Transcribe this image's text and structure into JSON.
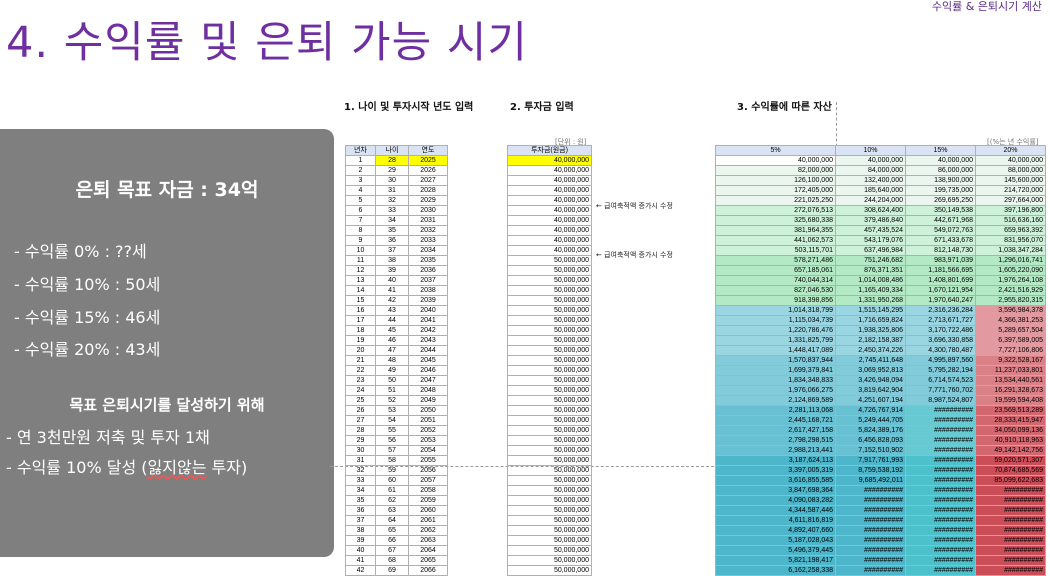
{
  "top_note": "수익률 & 은퇴시기 계산",
  "title": "4. 수익률 및 은퇴 가능 시기",
  "panel": {
    "goal": "은퇴 목표 자금 : 34억",
    "rates": [
      "- 수익률 0% : ??세",
      "- 수익률 10% : 50세",
      "- 수익률 15% : 46세",
      "- 수익률 20% : 43세"
    ],
    "heading": "목표 은퇴시기를 달성하기 위해",
    "actions": [
      "- 연 3천만원 저축 및 투자 1채"
    ],
    "action2_prefix": "- 수익률 10% 달성 (",
    "action2_underlined": "잃지않는",
    "action2_suffix": " 투자)"
  },
  "section_titles": {
    "s1": "1. 나이 및 투자시작 년도 입력",
    "s2": "2. 투자금 입력",
    "s3": "3. 수익률에 따른 자산"
  },
  "unit_labels": {
    "table_b": "[단위 : 원]",
    "table_c": "[(%는 년 수익률]"
  },
  "table_a_headers": [
    "년차",
    "나이",
    "연도"
  ],
  "table_b_header": "투자금(원금)",
  "table_c_headers": [
    "5%",
    "10%",
    "15%",
    "20%"
  ],
  "notes": {
    "n1": "← 급여축적액 증가시 수정",
    "n2": "← 급여축적액 증가시 수정"
  },
  "colors": {
    "title": "#6f2fa0",
    "panel": "#7f7f7f",
    "header_fill": "#dae3f3",
    "highlight": "#ffff00"
  },
  "rows": [
    [
      "1",
      "28",
      "2025",
      "40,000,000",
      "40,000,000",
      "40,000,000",
      "40,000,000",
      "40,000,000"
    ],
    [
      "2",
      "29",
      "2026",
      "40,000,000",
      "82,000,000",
      "84,000,000",
      "86,000,000",
      "88,000,000"
    ],
    [
      "3",
      "30",
      "2027",
      "40,000,000",
      "126,100,000",
      "132,400,000",
      "138,900,000",
      "145,600,000"
    ],
    [
      "4",
      "31",
      "2028",
      "40,000,000",
      "172,405,000",
      "185,640,000",
      "199,735,000",
      "214,720,000"
    ],
    [
      "5",
      "32",
      "2029",
      "40,000,000",
      "221,025,250",
      "244,204,000",
      "269,695,250",
      "297,664,000"
    ],
    [
      "6",
      "33",
      "2030",
      "40,000,000",
      "272,076,513",
      "308,624,400",
      "350,149,538",
      "397,196,800"
    ],
    [
      "7",
      "34",
      "2031",
      "40,000,000",
      "325,680,338",
      "379,486,840",
      "442,671,968",
      "516,636,160"
    ],
    [
      "8",
      "35",
      "2032",
      "40,000,000",
      "381,964,355",
      "457,435,524",
      "549,072,763",
      "659,963,392"
    ],
    [
      "9",
      "36",
      "2033",
      "40,000,000",
      "441,062,573",
      "543,179,076",
      "671,433,678",
      "831,956,070"
    ],
    [
      "10",
      "37",
      "2034",
      "40,000,000",
      "503,115,701",
      "637,496,984",
      "812,148,730",
      "1,038,347,284"
    ],
    [
      "11",
      "38",
      "2035",
      "50,000,000",
      "578,271,486",
      "751,246,682",
      "983,971,039",
      "1,296,016,741"
    ],
    [
      "12",
      "39",
      "2036",
      "50,000,000",
      "657,185,061",
      "876,371,351",
      "1,181,566,695",
      "1,605,220,090"
    ],
    [
      "13",
      "40",
      "2037",
      "50,000,000",
      "740,044,314",
      "1,014,008,486",
      "1,408,801,699",
      "1,976,264,108"
    ],
    [
      "14",
      "41",
      "2038",
      "50,000,000",
      "827,046,530",
      "1,165,409,334",
      "1,670,121,954",
      "2,421,516,929"
    ],
    [
      "15",
      "42",
      "2039",
      "50,000,000",
      "918,398,856",
      "1,331,950,268",
      "1,970,640,247",
      "2,955,820,315"
    ],
    [
      "16",
      "43",
      "2040",
      "50,000,000",
      "1,014,318,799",
      "1,515,145,295",
      "2,316,236,284",
      "3,596,984,378"
    ],
    [
      "17",
      "44",
      "2041",
      "50,000,000",
      "1,115,034,739",
      "1,716,659,824",
      "2,713,671,727",
      "4,366,381,253"
    ],
    [
      "18",
      "45",
      "2042",
      "50,000,000",
      "1,220,786,476",
      "1,938,325,806",
      "3,170,722,486",
      "5,289,657,504"
    ],
    [
      "19",
      "46",
      "2043",
      "50,000,000",
      "1,331,825,799",
      "2,182,158,387",
      "3,696,330,858",
      "6,397,589,005"
    ],
    [
      "20",
      "47",
      "2044",
      "50,000,000",
      "1,448,417,089",
      "2,450,374,226",
      "4,300,780,487",
      "7,727,106,806"
    ],
    [
      "21",
      "48",
      "2045",
      "50,000,000",
      "1,570,837,944",
      "2,745,411,648",
      "4,995,897,560",
      "9,322,528,167"
    ],
    [
      "22",
      "49",
      "2046",
      "50,000,000",
      "1,699,379,841",
      "3,069,952,813",
      "5,795,282,194",
      "11,237,033,801"
    ],
    [
      "23",
      "50",
      "2047",
      "50,000,000",
      "1,834,348,833",
      "3,426,948,094",
      "6,714,574,523",
      "13,534,440,561"
    ],
    [
      "24",
      "51",
      "2048",
      "50,000,000",
      "1,976,066,275",
      "3,819,642,904",
      "7,771,760,702",
      "16,291,328,673"
    ],
    [
      "25",
      "52",
      "2049",
      "50,000,000",
      "2,124,869,589",
      "4,251,607,194",
      "8,987,524,807",
      "19,599,594,408"
    ],
    [
      "26",
      "53",
      "2050",
      "50,000,000",
      "2,281,113,068",
      "4,726,767,914",
      "##########",
      "23,569,513,289"
    ],
    [
      "27",
      "54",
      "2051",
      "50,000,000",
      "2,445,168,721",
      "5,249,444,705",
      "##########",
      "28,333,415,947"
    ],
    [
      "28",
      "55",
      "2052",
      "50,000,000",
      "2,617,427,158",
      "5,824,389,176",
      "##########",
      "34,050,099,136"
    ],
    [
      "29",
      "56",
      "2053",
      "50,000,000",
      "2,798,298,515",
      "6,456,828,093",
      "##########",
      "40,910,118,963"
    ],
    [
      "30",
      "57",
      "2054",
      "50,000,000",
      "2,988,213,441",
      "7,152,510,902",
      "##########",
      "49,142,142,756"
    ],
    [
      "31",
      "58",
      "2055",
      "50,000,000",
      "3,187,624,113",
      "7,917,761,993",
      "##########",
      "59,020,571,307"
    ],
    [
      "32",
      "59",
      "2056",
      "50,000,000",
      "3,397,005,319",
      "8,759,538,192",
      "##########",
      "70,874,685,569"
    ],
    [
      "33",
      "60",
      "2057",
      "50,000,000",
      "3,616,855,585",
      "9,685,492,011",
      "##########",
      "85,099,622,683"
    ],
    [
      "34",
      "61",
      "2058",
      "50,000,000",
      "3,847,698,364",
      "##########",
      "##########",
      "##########"
    ],
    [
      "35",
      "62",
      "2059",
      "50,000,000",
      "4,090,083,282",
      "##########",
      "##########",
      "##########"
    ],
    [
      "36",
      "63",
      "2060",
      "50,000,000",
      "4,344,587,446",
      "##########",
      "##########",
      "##########"
    ],
    [
      "37",
      "64",
      "2061",
      "50,000,000",
      "4,611,816,819",
      "##########",
      "##########",
      "##########"
    ],
    [
      "38",
      "65",
      "2062",
      "50,000,000",
      "4,892,407,660",
      "##########",
      "##########",
      "##########"
    ],
    [
      "39",
      "66",
      "2063",
      "50,000,000",
      "5,187,028,043",
      "##########",
      "##########",
      "##########"
    ],
    [
      "40",
      "67",
      "2064",
      "50,000,000",
      "5,496,379,445",
      "##########",
      "##########",
      "##########"
    ],
    [
      "41",
      "68",
      "2065",
      "50,000,000",
      "5,821,198,417",
      "##########",
      "##########",
      "##########"
    ],
    [
      "42",
      "69",
      "2066",
      "50,000,000",
      "6,162,258,338",
      "##########",
      "##########",
      "##########"
    ]
  ]
}
